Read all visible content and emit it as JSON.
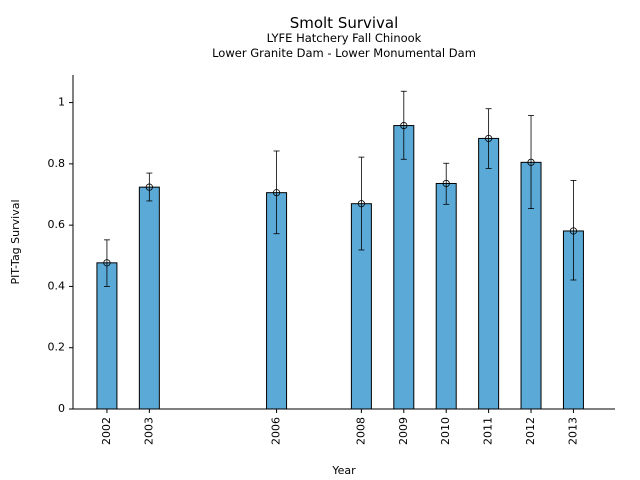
{
  "chart_data": {
    "type": "bar",
    "title": "Smolt Survival",
    "subtitle_line1": "LYFE Hatchery Fall Chinook",
    "subtitle_line2": "Lower Granite Dam - Lower Monumental Dam",
    "xlabel": "Year",
    "ylabel": "PIT-Tag Survival",
    "xlim": [
      2001.2,
      2013.98
    ],
    "ylim": [
      0,
      1.09
    ],
    "yticks": [
      0,
      0.2,
      0.4,
      0.6,
      0.8,
      1
    ],
    "ytick_labels": [
      "0",
      "0.2",
      "0.4",
      "0.6",
      "0.8",
      "1"
    ],
    "categories": [
      "2002",
      "2003",
      "2006",
      "2008",
      "2009",
      "2010",
      "2011",
      "2012",
      "2013"
    ],
    "x": [
      2002,
      2003,
      2006,
      2008,
      2009,
      2010,
      2011,
      2012,
      2013
    ],
    "values": [
      0.477,
      0.724,
      0.706,
      0.67,
      0.925,
      0.736,
      0.883,
      0.805,
      0.581
    ],
    "error_low": [
      0.4,
      0.679,
      0.572,
      0.519,
      0.815,
      0.668,
      0.785,
      0.654,
      0.421
    ],
    "error_high": [
      0.552,
      0.77,
      0.842,
      0.822,
      1.037,
      0.802,
      0.98,
      0.958,
      0.746
    ],
    "bar_color": "#5aa9d6",
    "edge_color": "#000000",
    "grid": false
  }
}
